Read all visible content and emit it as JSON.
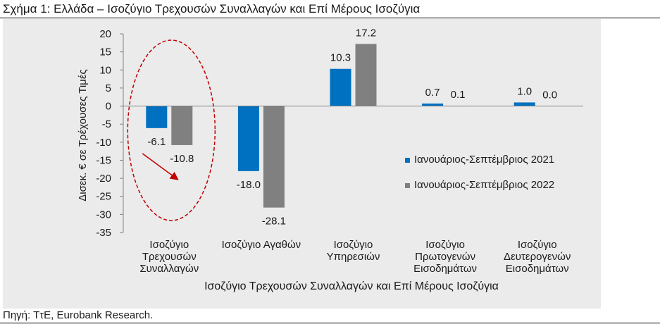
{
  "figure": {
    "title": "Σχήμα 1: Ελλάδα – Ισοζύγιο Τρεχουσών Συναλλαγών και Επί Μέρους Ισοζύγια",
    "source": "Πηγή: ΤτΕ, Eurobank Research."
  },
  "chart_data": {
    "type": "bar",
    "title": "",
    "xlabel": "Ισοζύγιο Τρεχουσών Συναλλαγών και Επί Μέρους Ισοζύγια",
    "ylabel": "Δισεκ. € σε Τρέχουσες Τιμές",
    "ylim": [
      -35,
      20
    ],
    "yticks": [
      20,
      15,
      10,
      5,
      0,
      -5,
      -10,
      -15,
      -20,
      -25,
      -30,
      -35
    ],
    "grid": false,
    "legend_position": "right",
    "categories": [
      [
        "Ισοζύγιο",
        "Τρεχουσών",
        "Συναλλαγών"
      ],
      [
        "Ισοζύγιο Αγαθών"
      ],
      [
        "Ισοζύγιο",
        "Υπηρεσιών"
      ],
      [
        "Ισοζύγιο",
        "Πρωτογενών",
        "Εισοδημάτων"
      ],
      [
        "Ισοζύγιο",
        "Δευτερογενών",
        "Εισοδημάτων"
      ]
    ],
    "series": [
      {
        "name": "Ιανουάριος-Σεπτέμβριος 2021",
        "color": "#0070c0",
        "values": [
          -6.1,
          -18.0,
          10.3,
          0.7,
          1.0
        ],
        "labels": [
          "-6.1",
          "-18.0",
          "10.3",
          "0.7",
          "1.0"
        ]
      },
      {
        "name": "Ιανουάριος-Σεπτέμβριος 2022",
        "color": "#808080",
        "values": [
          -10.8,
          -28.1,
          17.2,
          0.1,
          0.0
        ],
        "labels": [
          "-10.8",
          "-28.1",
          "17.2",
          "0.1",
          "0.0"
        ]
      }
    ],
    "annotations": {
      "highlight_ellipse_category": 0,
      "ellipse_color": "#c00000",
      "arrow_color": "#c00000"
    }
  }
}
